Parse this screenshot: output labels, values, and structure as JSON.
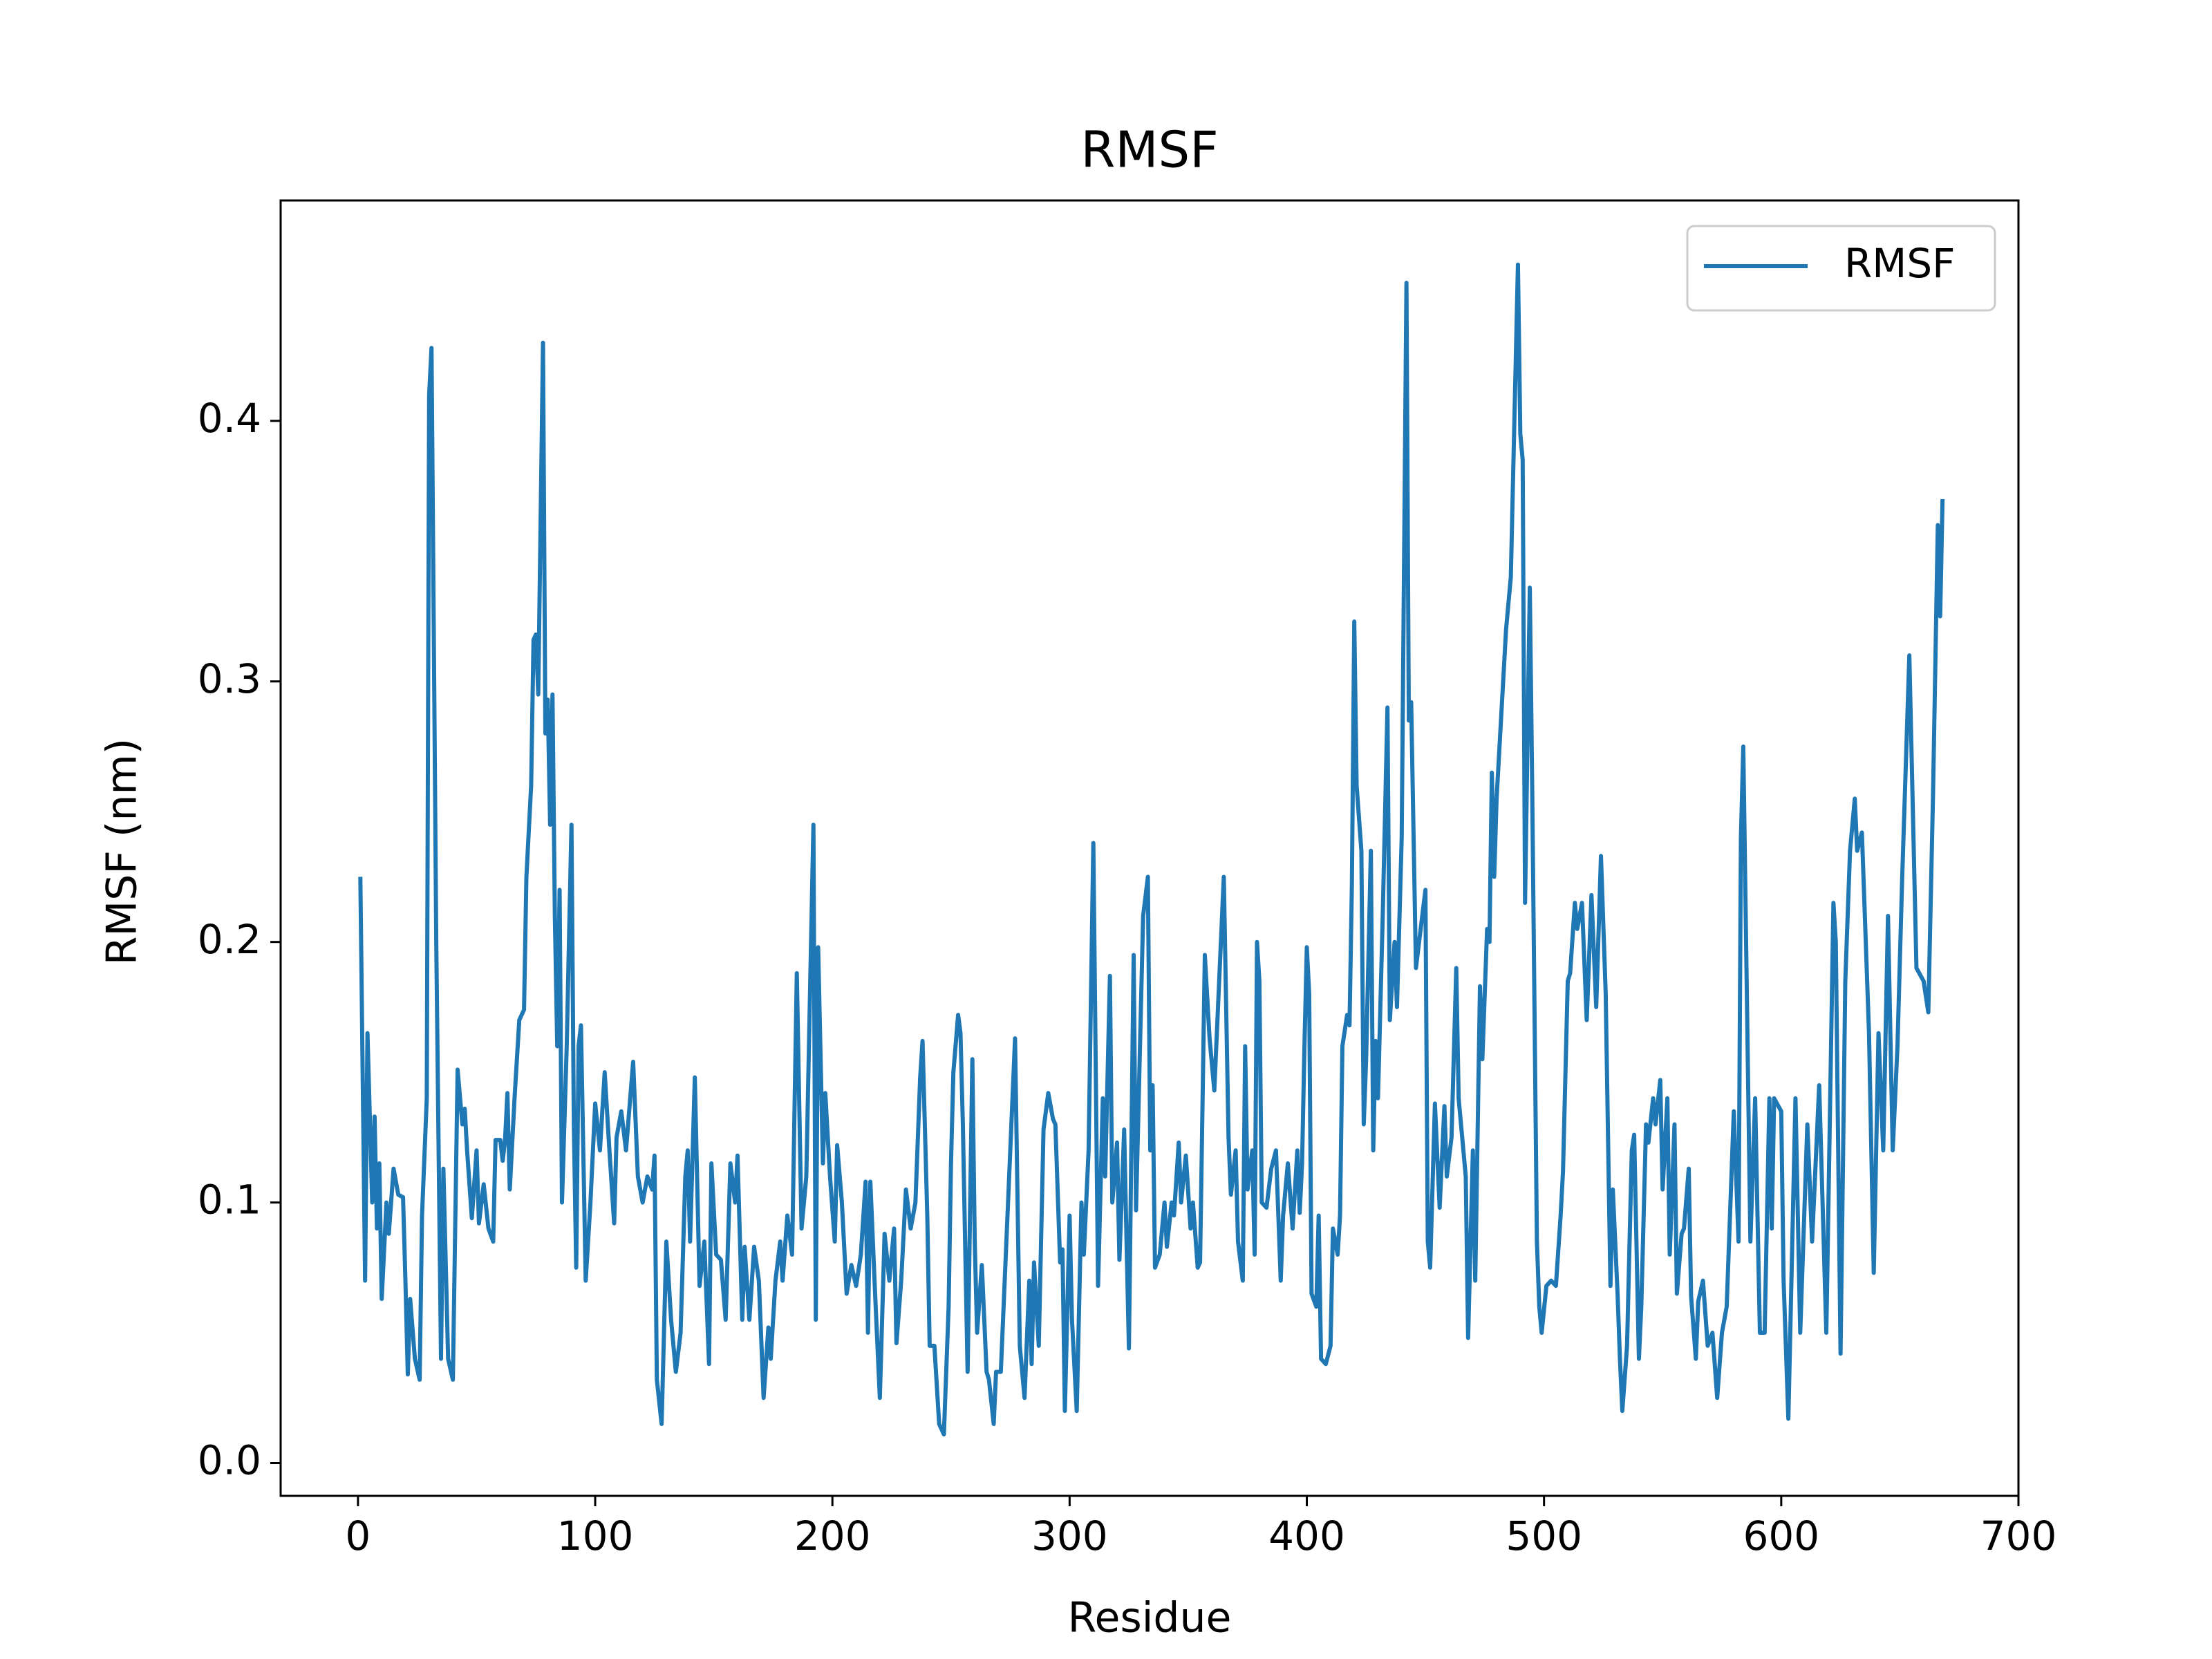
{
  "chart_data": {
    "type": "line",
    "title": "RMSF",
    "xlabel": "Residue",
    "ylabel": "RMSF (nm)",
    "x": [
      1,
      3,
      4,
      6,
      7,
      8,
      9,
      10,
      12,
      13,
      15,
      17,
      19,
      20,
      21,
      22,
      24,
      26,
      27,
      29,
      30,
      31,
      33,
      35,
      36,
      38,
      40,
      42,
      44,
      45,
      46,
      48,
      50,
      51,
      53,
      55,
      57,
      58,
      60,
      61,
      62,
      63,
      64,
      66,
      68,
      70,
      71,
      73,
      74,
      75,
      76,
      77,
      78,
      79,
      80,
      81,
      82,
      83,
      84,
      85,
      86,
      88,
      90,
      91,
      92,
      93,
      94,
      96,
      98,
      100,
      102,
      104,
      106,
      108,
      109,
      111,
      113,
      116,
      118,
      120,
      122,
      124,
      125,
      126,
      128,
      130,
      132,
      134,
      136,
      138,
      139,
      140,
      142,
      144,
      146,
      148,
      149,
      151,
      153,
      155,
      157,
      159,
      160,
      162,
      163,
      165,
      167,
      169,
      171,
      173,
      174,
      176,
      178,
      179,
      181,
      183,
      185,
      187,
      189,
      192,
      193,
      194,
      196,
      197,
      199,
      201,
      202,
      204,
      206,
      208,
      210,
      212,
      214,
      215,
      216,
      218,
      220,
      222,
      224,
      226,
      227,
      229,
      231,
      233,
      235,
      237,
      238,
      240,
      241,
      243,
      245,
      247,
      249,
      250,
      251,
      253,
      254,
      255,
      257,
      259,
      260,
      261,
      263,
      265,
      266,
      268,
      269,
      271,
      277,
      279,
      281,
      283,
      284,
      285,
      287,
      289,
      291,
      293,
      294,
      296,
      297,
      298,
      300,
      301,
      303,
      305,
      306,
      308,
      310,
      312,
      314,
      315,
      317,
      318,
      320,
      321,
      323,
      324,
      325,
      327,
      328,
      331,
      333,
      334,
      335,
      336,
      338,
      340,
      341,
      343,
      344,
      346,
      347,
      349,
      351,
      352,
      354,
      355,
      357,
      359,
      361,
      365,
      367,
      368,
      370,
      371,
      373,
      374,
      375,
      377,
      378,
      379,
      380,
      381,
      383,
      385,
      387,
      389,
      390,
      392,
      394,
      396,
      397,
      398,
      399,
      400,
      401,
      402,
      404,
      405,
      406,
      408,
      410,
      411,
      413,
      414,
      415,
      417,
      418,
      419,
      420,
      421,
      423,
      424,
      425,
      427,
      428,
      429,
      430,
      432,
      434,
      435,
      437,
      438,
      440,
      442,
      443,
      444,
      446,
      448,
      450,
      451,
      452,
      454,
      456,
      458,
      459,
      461,
      463,
      464,
      466,
      467,
      468,
      470,
      471,
      473,
      474,
      476,
      477,
      478,
      479,
      480,
      484,
      486,
      489,
      490,
      491,
      492,
      494,
      495,
      497,
      498,
      499,
      501,
      503,
      505,
      507,
      508,
      510,
      511,
      513,
      514,
      516,
      518,
      520,
      522,
      524,
      526,
      528,
      529,
      531,
      532,
      533,
      535,
      537,
      538,
      540,
      541,
      543,
      544,
      546,
      547,
      549,
      550,
      552,
      553,
      555,
      556,
      558,
      559,
      561,
      562,
      564,
      565,
      567,
      569,
      571,
      573,
      575,
      577,
      580,
      582,
      583,
      584,
      587,
      589,
      591,
      593,
      595,
      596,
      597,
      600,
      601,
      603,
      606,
      608,
      611,
      613,
      616,
      619,
      622,
      623,
      625,
      627,
      629,
      631,
      632,
      634,
      637,
      639,
      641,
      643,
      645,
      647,
      649,
      651,
      654,
      657,
      660,
      662,
      664,
      666,
      667,
      668
    ],
    "series": [
      {
        "name": "RMSF",
        "color": "#1f77b4",
        "values": [
          0.225,
          0.07,
          0.165,
          0.1,
          0.133,
          0.09,
          0.115,
          0.063,
          0.1,
          0.088,
          0.113,
          0.103,
          0.102,
          0.07,
          0.034,
          0.063,
          0.04,
          0.032,
          0.095,
          0.14,
          0.41,
          0.428,
          0.2,
          0.04,
          0.113,
          0.04,
          0.032,
          0.151,
          0.13,
          0.136,
          0.12,
          0.094,
          0.12,
          0.092,
          0.107,
          0.09,
          0.085,
          0.124,
          0.124,
          0.116,
          0.124,
          0.142,
          0.105,
          0.14,
          0.17,
          0.174,
          0.225,
          0.26,
          0.316,
          0.318,
          0.295,
          0.362,
          0.43,
          0.28,
          0.293,
          0.245,
          0.295,
          0.21,
          0.16,
          0.22,
          0.1,
          0.16,
          0.245,
          0.13,
          0.075,
          0.16,
          0.168,
          0.07,
          0.1,
          0.138,
          0.12,
          0.15,
          0.12,
          0.092,
          0.125,
          0.135,
          0.12,
          0.154,
          0.11,
          0.1,
          0.11,
          0.105,
          0.118,
          0.032,
          0.015,
          0.085,
          0.055,
          0.035,
          0.05,
          0.11,
          0.12,
          0.085,
          0.148,
          0.068,
          0.085,
          0.038,
          0.115,
          0.08,
          0.078,
          0.055,
          0.115,
          0.1,
          0.118,
          0.055,
          0.083,
          0.055,
          0.083,
          0.07,
          0.025,
          0.052,
          0.04,
          0.07,
          0.085,
          0.07,
          0.095,
          0.08,
          0.188,
          0.09,
          0.11,
          0.245,
          0.055,
          0.198,
          0.115,
          0.142,
          0.11,
          0.085,
          0.122,
          0.1,
          0.065,
          0.076,
          0.068,
          0.08,
          0.108,
          0.05,
          0.108,
          0.065,
          0.025,
          0.088,
          0.07,
          0.09,
          0.046,
          0.07,
          0.105,
          0.09,
          0.1,
          0.148,
          0.162,
          0.095,
          0.045,
          0.045,
          0.015,
          0.011,
          0.06,
          0.115,
          0.15,
          0.172,
          0.165,
          0.13,
          0.035,
          0.155,
          0.085,
          0.05,
          0.076,
          0.035,
          0.032,
          0.015,
          0.035,
          0.035,
          0.163,
          0.045,
          0.025,
          0.07,
          0.038,
          0.077,
          0.045,
          0.128,
          0.142,
          0.132,
          0.13,
          0.077,
          0.082,
          0.02,
          0.095,
          0.055,
          0.02,
          0.1,
          0.08,
          0.12,
          0.238,
          0.068,
          0.14,
          0.11,
          0.187,
          0.1,
          0.123,
          0.078,
          0.128,
          0.085,
          0.044,
          0.195,
          0.097,
          0.21,
          0.225,
          0.12,
          0.145,
          0.075,
          0.08,
          0.1,
          0.083,
          0.1,
          0.095,
          0.123,
          0.1,
          0.118,
          0.09,
          0.1,
          0.075,
          0.077,
          0.195,
          0.163,
          0.143,
          0.225,
          0.125,
          0.103,
          0.12,
          0.085,
          0.07,
          0.16,
          0.105,
          0.12,
          0.08,
          0.2,
          0.185,
          0.1,
          0.098,
          0.113,
          0.12,
          0.07,
          0.095,
          0.115,
          0.09,
          0.12,
          0.096,
          0.115,
          0.16,
          0.198,
          0.18,
          0.065,
          0.06,
          0.095,
          0.04,
          0.038,
          0.045,
          0.09,
          0.08,
          0.095,
          0.16,
          0.172,
          0.168,
          0.222,
          0.323,
          0.26,
          0.235,
          0.13,
          0.155,
          0.235,
          0.12,
          0.162,
          0.14,
          0.21,
          0.29,
          0.17,
          0.2,
          0.175,
          0.24,
          0.453,
          0.285,
          0.292,
          0.19,
          0.205,
          0.22,
          0.085,
          0.075,
          0.138,
          0.098,
          0.137,
          0.11,
          0.125,
          0.19,
          0.14,
          0.12,
          0.11,
          0.048,
          0.12,
          0.07,
          0.183,
          0.155,
          0.205,
          0.2,
          0.265,
          0.225,
          0.255,
          0.32,
          0.34,
          0.46,
          0.395,
          0.385,
          0.215,
          0.336,
          0.26,
          0.085,
          0.06,
          0.05,
          0.068,
          0.07,
          0.068,
          0.095,
          0.112,
          0.185,
          0.188,
          0.215,
          0.205,
          0.215,
          0.17,
          0.218,
          0.175,
          0.233,
          0.18,
          0.068,
          0.105,
          0.065,
          0.04,
          0.02,
          0.045,
          0.12,
          0.126,
          0.04,
          0.06,
          0.13,
          0.123,
          0.14,
          0.13,
          0.147,
          0.105,
          0.14,
          0.08,
          0.13,
          0.065,
          0.088,
          0.09,
          0.113,
          0.064,
          0.04,
          0.062,
          0.07,
          0.045,
          0.05,
          0.025,
          0.05,
          0.06,
          0.135,
          0.085,
          0.24,
          0.275,
          0.085,
          0.14,
          0.05,
          0.05,
          0.14,
          0.09,
          0.14,
          0.135,
          0.07,
          0.017,
          0.14,
          0.05,
          0.13,
          0.085,
          0.145,
          0.05,
          0.215,
          0.2,
          0.042,
          0.185,
          0.235,
          0.255,
          0.235,
          0.242,
          0.165,
          0.073,
          0.165,
          0.12,
          0.21,
          0.12,
          0.16,
          0.225,
          0.31,
          0.19,
          0.185,
          0.173,
          0.257,
          0.36,
          0.325,
          0.37
        ]
      }
    ],
    "xlim": [
      -32.6,
      700
    ],
    "ylim": [
      -0.0126,
      0.4846
    ],
    "xticks": [
      0,
      100,
      200,
      300,
      400,
      500,
      600,
      700
    ],
    "yticks": [
      {
        "value": 0,
        "label": "0.0"
      },
      0.1,
      0.2,
      0.3,
      0.4
    ],
    "grid": false,
    "legend": "upper right"
  }
}
